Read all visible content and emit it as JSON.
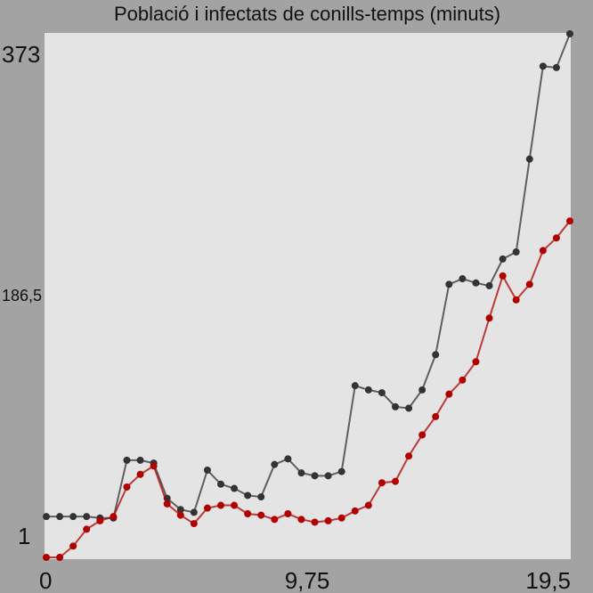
{
  "chart_data": {
    "type": "line",
    "title": "Població i infectats de conills-temps (minuts)",
    "xlabel": "",
    "ylabel": "",
    "xlim": [
      0,
      19.5
    ],
    "ylim": [
      1,
      373
    ],
    "x_ticks": [
      "0",
      "9,75",
      "19,5"
    ],
    "y_ticks": [
      "1",
      "186,5",
      "373"
    ],
    "grid": false,
    "legend": "none",
    "x": [
      0,
      0.5,
      1,
      1.5,
      2,
      2.5,
      3,
      3.5,
      4,
      4.5,
      5,
      5.5,
      6,
      6.5,
      7,
      7.5,
      8,
      8.5,
      9,
      9.5,
      10,
      10.5,
      11,
      11.5,
      12,
      12.5,
      13,
      13.5,
      14,
      14.5,
      15,
      15.5,
      16,
      16.5,
      17,
      17.5,
      18,
      18.5,
      19,
      19.5
    ],
    "series": [
      {
        "color": "#333333",
        "values": [
          30,
          30,
          30,
          30,
          29,
          29,
          70,
          70,
          68,
          43,
          35,
          33,
          63,
          53,
          50,
          45,
          44,
          67,
          71,
          61,
          59,
          59,
          62,
          123,
          120,
          118,
          108,
          107,
          120,
          145,
          195,
          199,
          196,
          194,
          213,
          218,
          284,
          350,
          349,
          373
        ]
      },
      {
        "color": "#b00000",
        "values": [
          1,
          1,
          9,
          21,
          27,
          30,
          51,
          60,
          66,
          39,
          31,
          25,
          36,
          38,
          38,
          32,
          31,
          28,
          32,
          28,
          26,
          27,
          29,
          34,
          38,
          54,
          55,
          73,
          88,
          101,
          117,
          127,
          140,
          171,
          201,
          184,
          195,
          219,
          228,
          240
        ]
      }
    ]
  }
}
